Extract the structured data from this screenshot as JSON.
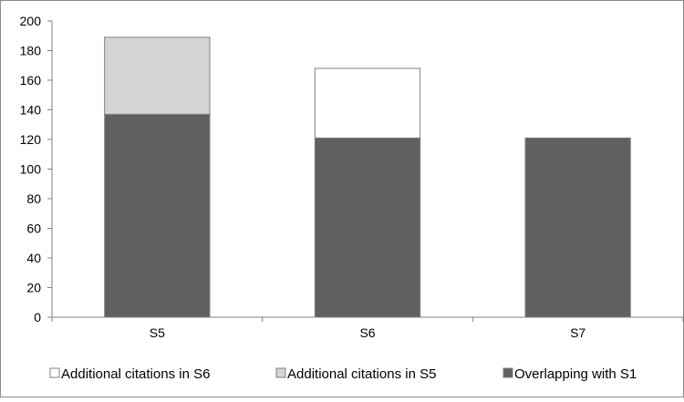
{
  "chart_data": {
    "type": "bar",
    "stacked": true,
    "categories": [
      "S5",
      "S6",
      "S7"
    ],
    "series": [
      {
        "name": "Overlapping with S1",
        "values": [
          137,
          121,
          121
        ],
        "color": "#606060"
      },
      {
        "name": "Additional citations in S5",
        "values": [
          52,
          0,
          0
        ],
        "color": "#d4d4d4"
      },
      {
        "name": "Additional citations in S6",
        "values": [
          0,
          47,
          0
        ],
        "color": "#ffffff"
      }
    ],
    "legend_order": [
      "Additional citations in S6",
      "Additional citations in S5",
      "Overlapping with S1"
    ],
    "ylim": [
      0,
      200
    ],
    "yticks": [
      0,
      20,
      40,
      60,
      80,
      100,
      120,
      140,
      160,
      180,
      200
    ],
    "grid": false,
    "legend_position": "bottom"
  }
}
